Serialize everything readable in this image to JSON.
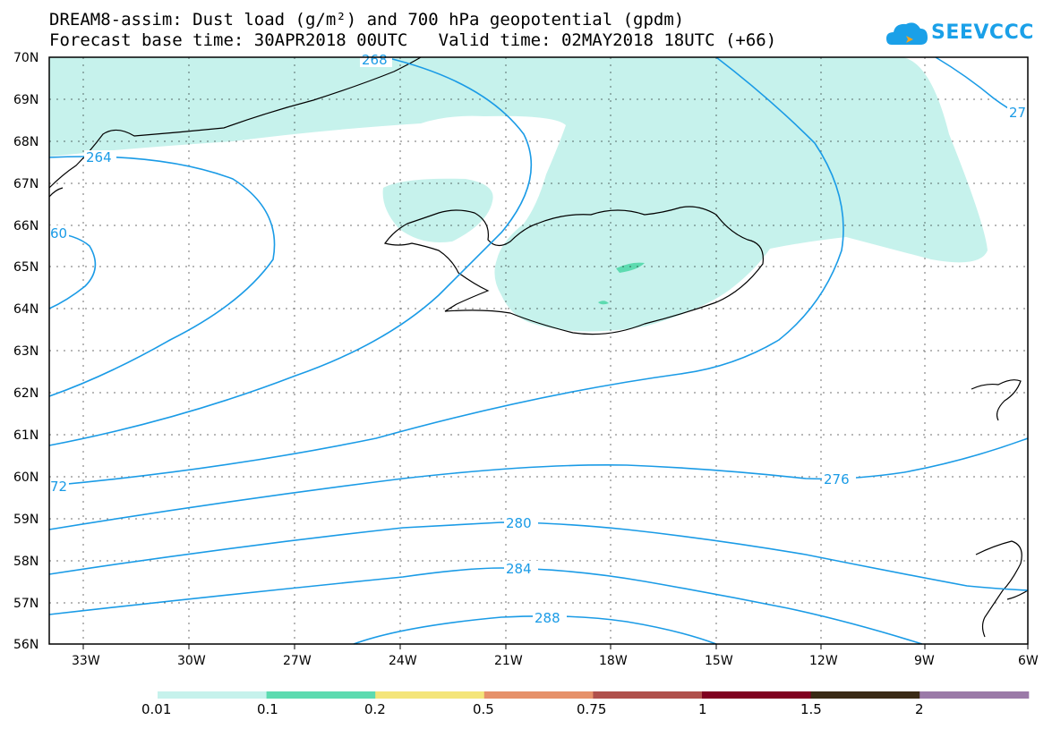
{
  "header": {
    "title_line1": "DREAM8-assim: Dust load (g/m²) and 700 hPa geopotential (gpdm)",
    "title_line2": "Forecast base time: 30APR2018 00UTC   Valid time: 02MAY2018 18UTC (+66)",
    "logo_text": "SEEVCCC"
  },
  "axes": {
    "lat_labels": [
      "70N",
      "69N",
      "68N",
      "67N",
      "66N",
      "65N",
      "64N",
      "63N",
      "62N",
      "61N",
      "60N",
      "59N",
      "58N",
      "57N",
      "56N"
    ],
    "lon_labels": [
      "33W",
      "30W",
      "27W",
      "24W",
      "21W",
      "18W",
      "15W",
      "12W",
      "9W",
      "6W"
    ]
  },
  "contours": {
    "labels": [
      "268",
      "264",
      "60",
      "72",
      "276",
      "280",
      "284",
      "288",
      "27"
    ]
  },
  "colorbar": {
    "labels": [
      "0.01",
      "0.1",
      "0.2",
      "0.5",
      "0.75",
      "1",
      "1.5",
      "2"
    ],
    "colors": [
      "#c6f2ec",
      "#5ddbb0",
      "#f4e57a",
      "#e6916a",
      "#b0504c",
      "#800020",
      "#3a2a15",
      "#9b7aa8"
    ]
  },
  "colors": {
    "dust_light": "#c6f2ec",
    "dust_medium": "#5ddbb0",
    "contour": "#1a9be6",
    "coast": "#000000"
  }
}
